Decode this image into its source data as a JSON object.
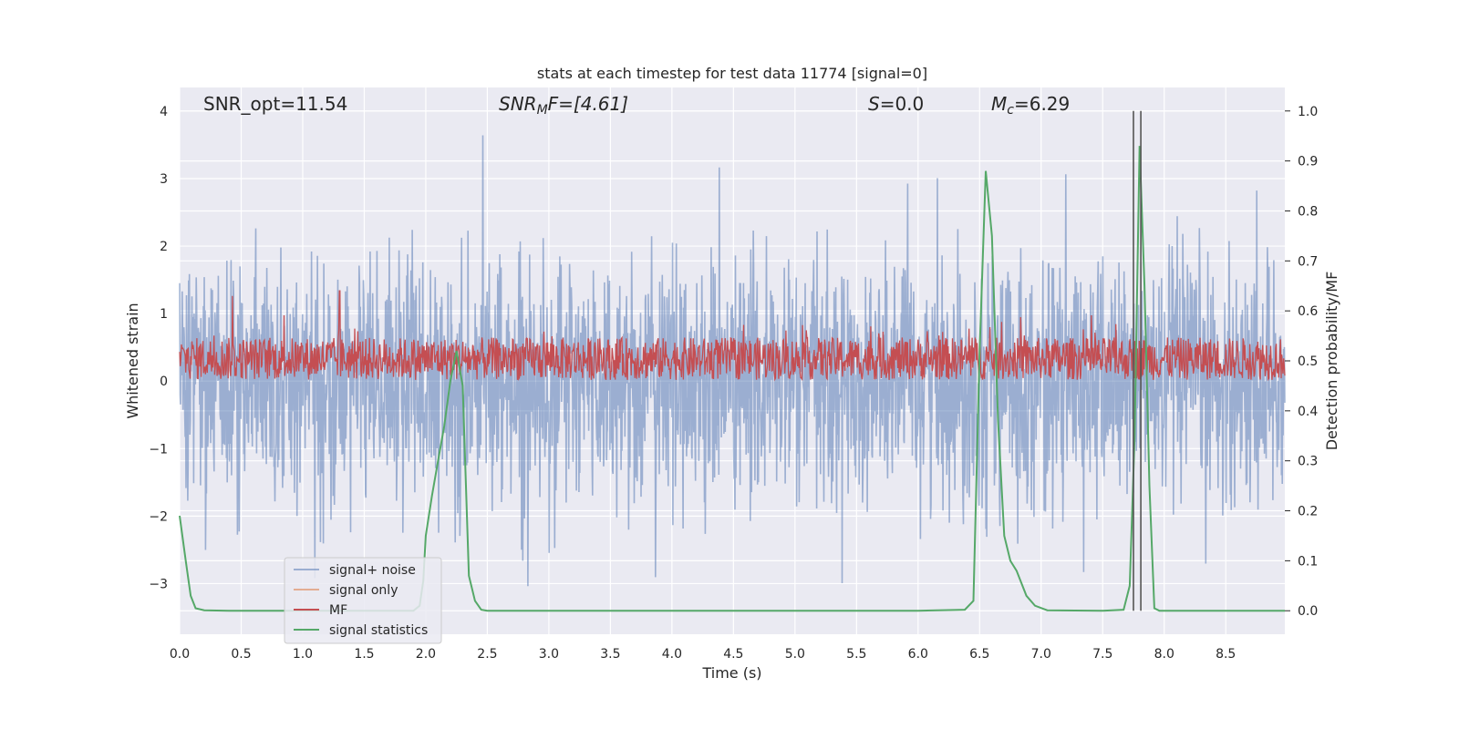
{
  "chart_data": {
    "type": "line",
    "title": "stats at each timestep for test data 11774 [signal=0]",
    "xlabel": "Time (s)",
    "ylabel_left": "Whitened strain",
    "ylabel_right": "Detection probability/MF",
    "xlim": [
      0.0,
      8.98
    ],
    "ylim_left": [
      -3.75,
      4.35
    ],
    "ylim_right": [
      -0.047,
      1.047
    ],
    "x_ticks": [
      "0.0",
      "0.5",
      "1.0",
      "1.5",
      "2.0",
      "2.5",
      "3.0",
      "3.5",
      "4.0",
      "4.5",
      "5.0",
      "5.5",
      "6.0",
      "6.5",
      "7.0",
      "7.5",
      "8.0",
      "8.5"
    ],
    "y_ticks_left": [
      "4",
      "3",
      "2",
      "1",
      "0",
      "−1",
      "−2",
      "−3"
    ],
    "y_ticks_right": [
      "1.0",
      "0.9",
      "0.8",
      "0.7",
      "0.6",
      "0.5",
      "0.4",
      "0.3",
      "0.2",
      "0.1",
      "0.0"
    ],
    "grid": true,
    "legend_position": "lower-left",
    "annotations": [
      {
        "label": "SNR_opt=11.54",
        "math": false
      },
      {
        "base": "SNR",
        "sub": "M",
        "rest": "F=[4.61]",
        "math": true
      },
      {
        "base": "S",
        "sub": "",
        "rest": "=0.0",
        "math": true
      },
      {
        "base": "M",
        "sub": "c",
        "rest": "=6.29",
        "math": true
      }
    ],
    "series": [
      {
        "name": "signal+ noise",
        "axis": "left",
        "color": "#4c72b0",
        "amplitude_range": [
          -3.35,
          4.0
        ],
        "typical_range": [
          -1.9,
          2.0
        ]
      },
      {
        "name": "signal only",
        "axis": "left",
        "color": "#dd8452",
        "values": []
      },
      {
        "name": "MF",
        "axis": "right",
        "color": "#c44e52",
        "baseline": 0.5,
        "peaks": [
          {
            "x": 0.43,
            "y": 0.63
          },
          {
            "x": 1.3,
            "y": 0.64
          }
        ]
      },
      {
        "name": "signal statistics",
        "axis": "right",
        "color": "#55a868",
        "x": [
          0.0,
          0.05,
          0.09,
          0.13,
          0.2,
          0.4,
          1.0,
          1.5,
          1.9,
          1.95,
          1.98,
          2.0,
          2.05,
          2.1,
          2.15,
          2.2,
          2.25,
          2.3,
          2.35,
          2.4,
          2.45,
          2.5,
          2.6,
          3.0,
          4.0,
          5.0,
          6.0,
          6.38,
          6.45,
          6.5,
          6.55,
          6.6,
          6.65,
          6.7,
          6.75,
          6.8,
          6.88,
          6.95,
          7.05,
          7.5,
          7.67,
          7.72,
          7.76,
          7.8,
          7.84,
          7.88,
          7.92,
          7.96,
          8.2,
          8.98
        ],
        "y": [
          0.19,
          0.1,
          0.03,
          0.005,
          0.001,
          0.0,
          0.0,
          0.0,
          0.0,
          0.01,
          0.06,
          0.15,
          0.23,
          0.3,
          0.37,
          0.46,
          0.52,
          0.45,
          0.07,
          0.02,
          0.002,
          0.0,
          0.0,
          0.0,
          0.0,
          0.0,
          0.0,
          0.002,
          0.02,
          0.52,
          0.88,
          0.75,
          0.38,
          0.15,
          0.1,
          0.08,
          0.03,
          0.01,
          0.001,
          0.0,
          0.002,
          0.05,
          0.35,
          0.93,
          0.65,
          0.25,
          0.005,
          0.0,
          0.0,
          0.0
        ]
      },
      {
        "name": "vertical markers",
        "axis": "right",
        "color": "#555555",
        "x": [
          7.75,
          7.81
        ],
        "y_range": [
          0.0,
          1.0
        ]
      }
    ]
  }
}
